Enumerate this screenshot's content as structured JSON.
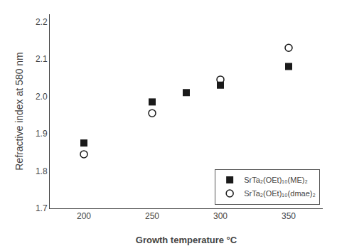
{
  "chart_data": {
    "type": "scatter",
    "xlabel": "Growth temperature °C",
    "ylabel": "Refractive index at 580 nm",
    "series": [
      {
        "name": "SrTa₂(OEt)₁₀(ME)₂",
        "x": [
          200,
          250,
          275,
          300,
          350
        ],
        "values": [
          1.875,
          1.985,
          2.01,
          2.03,
          2.08
        ],
        "color": "#1a1a1a",
        "marker": "square"
      },
      {
        "name": "SrTa₂(OEt)₁₀(dmae)₂",
        "x": [
          200,
          250,
          300,
          350
        ],
        "values": [
          1.845,
          1.955,
          2.045,
          2.13
        ],
        "color": "#1a1a1a",
        "marker": "circle-open"
      }
    ],
    "xlim": [
      175,
      375
    ],
    "ylim": [
      1.7,
      2.22
    ],
    "xticks": [
      200,
      250,
      300,
      350
    ],
    "yticks": [
      1.7,
      1.8,
      1.9,
      {
        "value": 2.0,
        "label": "2.0"
      },
      2.1,
      2.2
    ],
    "grid": false,
    "legend": "lower right"
  }
}
